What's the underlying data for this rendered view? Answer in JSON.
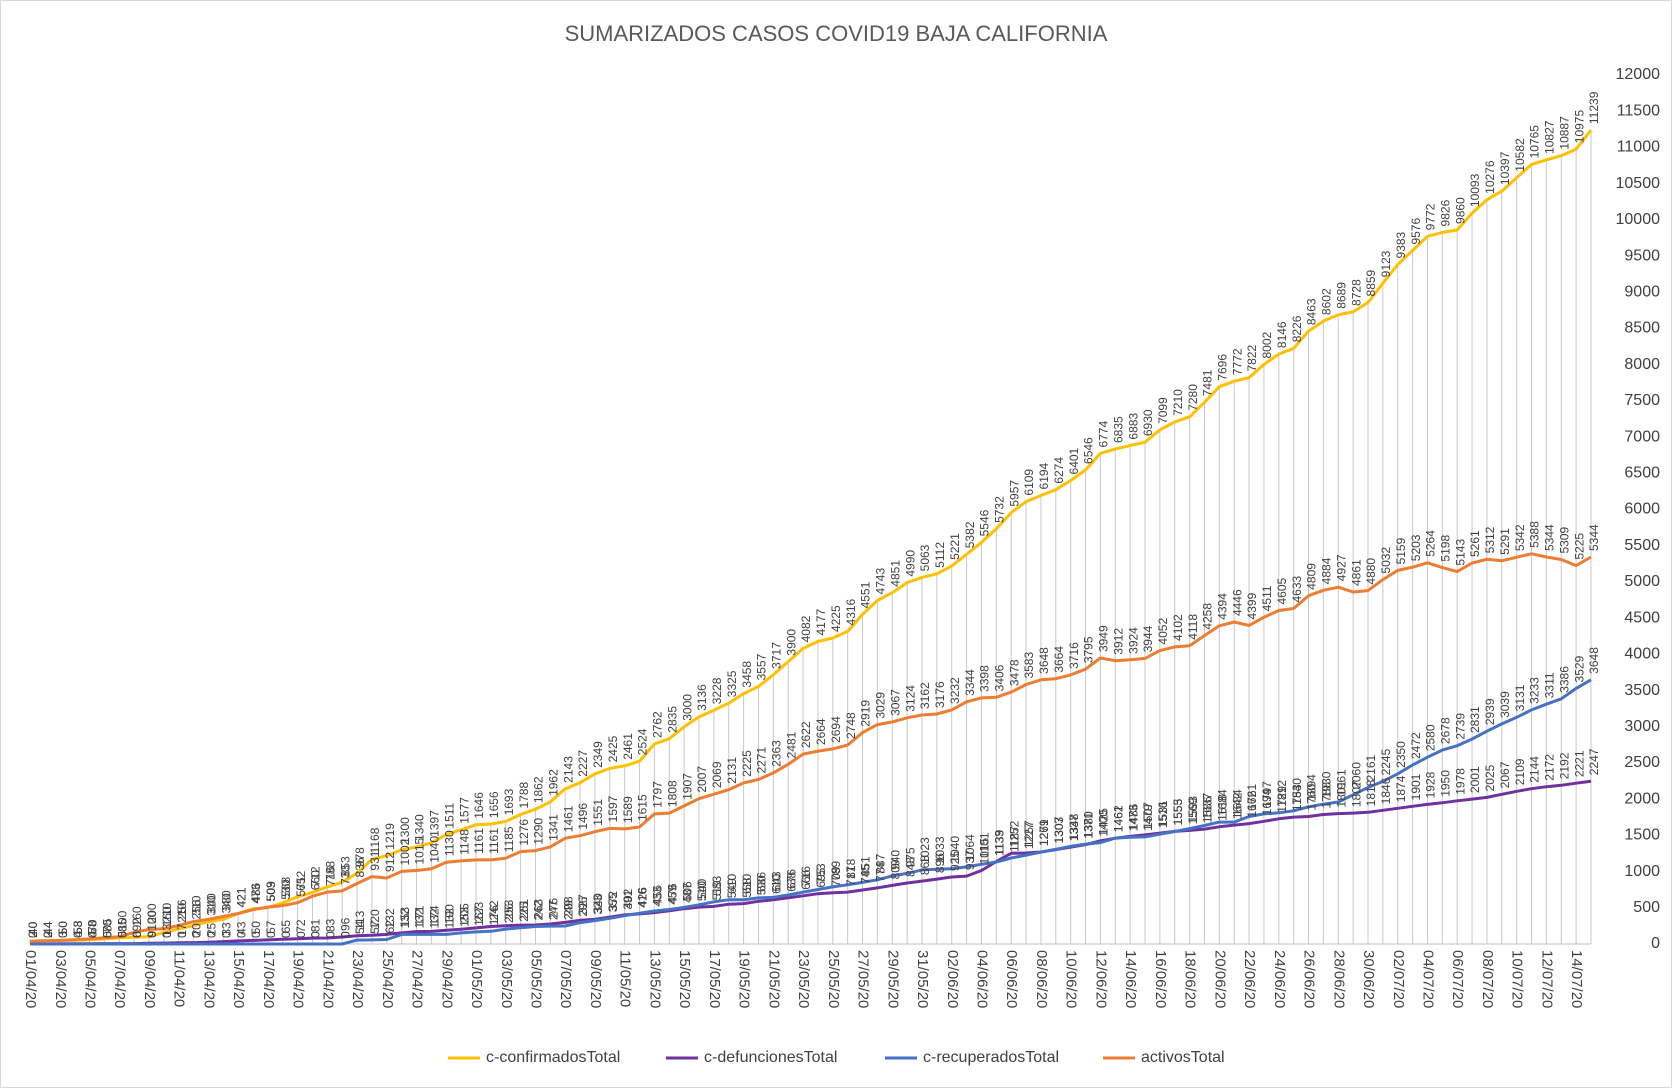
{
  "chart_data": {
    "type": "line",
    "title": "SUMARIZADOS  CASOS COVID19  BAJA  CALIFORNIA",
    "categories": [
      "01/04/20",
      null,
      "03/04/20",
      null,
      "05/04/20",
      null,
      "07/04/20",
      null,
      "09/04/20",
      null,
      "11/04/20",
      null,
      "13/04/20",
      null,
      "15/04/20",
      null,
      "17/04/20",
      null,
      "19/04/20",
      null,
      "21/04/20",
      null,
      "23/04/20",
      null,
      "25/04/20",
      null,
      "27/04/20",
      null,
      "29/04/20",
      null,
      "01/05/20",
      null,
      "03/05/20",
      null,
      "05/05/20",
      null,
      "07/05/20",
      null,
      "09/05/20",
      null,
      "11/05/20",
      null,
      "13/05/20",
      null,
      "15/05/20",
      null,
      "17/05/20",
      null,
      "19/05/20",
      null,
      "21/05/20",
      null,
      "23/05/20",
      null,
      "25/05/20",
      null,
      "27/05/20",
      null,
      "29/05/20",
      null,
      "31/05/20",
      null,
      "02/06/20",
      null,
      "04/06/20",
      null,
      "06/06/20",
      null,
      "08/06/20",
      null,
      "10/06/20",
      null,
      "12/06/20",
      null,
      "14/06/20",
      null,
      "16/06/20",
      null,
      "18/06/20",
      null,
      "20/06/20",
      null,
      "22/06/20",
      null,
      "24/06/20",
      null,
      "26/06/20",
      null,
      "28/06/20",
      null,
      "30/06/20",
      null,
      "02/07/20",
      null,
      "04/07/20",
      null,
      "06/07/20",
      null,
      "08/07/20",
      null,
      "10/07/20",
      null,
      "12/07/20",
      null,
      "14/07/20",
      null
    ],
    "series": [
      {
        "name": "c-confirmadosTotal",
        "color": "#ffc000",
        "values": [
          40,
          44,
          50,
          53,
          58,
          70,
          85,
          92,
          100,
          160,
          210,
          256,
          310,
          340,
          421,
          486,
          503,
          568,
          652,
          712,
          788,
          853,
          978,
          1168,
          1219,
          1300,
          1340,
          1397,
          1511,
          1577,
          1646,
          1656,
          1693,
          1788,
          1862,
          1962,
          2143,
          2227,
          2349,
          2425,
          2461,
          2524,
          2762,
          2835,
          3000,
          3136,
          3228,
          3325,
          3458,
          3557,
          3717,
          3900,
          4082,
          4177,
          4225,
          4316,
          4551,
          4743,
          4851,
          4990,
          5063,
          5112,
          5221,
          5382,
          5546,
          5732,
          5957,
          6109,
          6194,
          6274,
          6401,
          6546,
          6774,
          6835,
          6883,
          6930,
          7099,
          7210,
          7280,
          7481,
          7696,
          7772,
          7822,
          8002,
          8146,
          8226,
          8463,
          8602,
          8689,
          8728,
          8859,
          9123,
          9383,
          9576,
          9772,
          9826,
          9860,
          10093,
          10276,
          10397,
          10582,
          10765,
          10827,
          10887,
          10975,
          11239
        ]
      },
      {
        "name": "c-defuncionesTotal",
        "color": "#7030a0",
        "values": [
          2,
          2,
          3,
          4,
          4,
          5,
          5,
          6,
          9,
          13,
          17,
          20,
          25,
          33,
          43,
          50,
          57,
          65,
          72,
          81,
          83,
          96,
          113,
          120,
          132,
          153,
          171,
          174,
          190,
          205,
          223,
          242,
          253,
          261,
          263,
          276,
          298,
          327,
          340,
          372,
          402,
          416,
          433,
          459,
          487,
          510,
          519,
          549,
          558,
          590,
          610,
          638,
          666,
          695,
          709,
          717,
          745,
          774,
          809,
          843,
          868,
          896,
          925,
          937,
          1015,
          1139,
          1252,
          1257,
          1271,
          1303,
          1337,
          1371,
          1425,
          1461,
          1486,
          1507,
          1531,
          1555,
          1569,
          1586,
          1618,
          1642,
          1662,
          1694,
          1729,
          1753,
          1760,
          1788,
          1801,
          1807,
          1818,
          1846,
          1874,
          1901,
          1928,
          1950,
          1978,
          2001,
          2025,
          2067,
          2109,
          2144,
          2172,
          2192,
          2221,
          2247
        ]
      },
      {
        "name": "c-recuperadosTotal",
        "color": "#4472c4",
        "values": [
          0,
          0,
          0,
          0,
          0,
          0,
          0,
          0,
          0,
          0,
          0,
          0,
          0,
          0,
          0,
          0,
          0,
          0,
          0,
          0,
          0,
          0,
          54,
          57,
          62,
          132,
          132,
          132,
          132,
          153,
          167,
          176,
          206,
          225,
          242,
          247,
          249,
          296,
          323,
          355,
          391,
          426,
          456,
          476,
          506,
          540,
          583,
          610,
          610,
          636,
          643,
          676,
          716,
          753,
          789,
          818,
          851,
          887,
          940,
          975,
          1023,
          1033,
          1040,
          1064,
          1101,
          1133,
          1187,
          1227,
          1269,
          1307,
          1348,
          1380,
          1400,
          1462,
          1473,
          1479,
          1516,
          1553,
          1593,
          1637,
          1684,
          1684,
          1761,
          1797,
          1812,
          1840,
          1894,
          1930,
          1961,
          2060,
          2161,
          2245,
          2350,
          2472,
          2580,
          2678,
          2739,
          2831,
          2939,
          3039,
          3131,
          3233,
          3311,
          3386,
          3529,
          3648
        ]
      },
      {
        "name": "activosTotal",
        "color": "#ed7d31",
        "values": [
          40,
          44,
          50,
          58,
          70,
          85,
          100,
          160,
          200,
          210,
          256,
          310,
          340,
          380,
          421,
          473,
          509,
          530,
          571,
          660,
          716,
          733,
          836,
          931,
          912,
          1002,
          1015,
          1040,
          1130,
          1148,
          1161,
          1161,
          1185,
          1276,
          1290,
          1341,
          1461,
          1496,
          1551,
          1597,
          1589,
          1615,
          1797,
          1808,
          1907,
          2007,
          2069,
          2131,
          2225,
          2271,
          2363,
          2481,
          2622,
          2664,
          2694,
          2748,
          2919,
          3029,
          3067,
          3124,
          3162,
          3176,
          3232,
          3344,
          3398,
          3406,
          3478,
          3583,
          3648,
          3664,
          3716,
          3795,
          3949,
          3912,
          3924,
          3944,
          4052,
          4102,
          4118,
          4258,
          4394,
          4446,
          4399,
          4511,
          4605,
          4633,
          4809,
          4884,
          4927,
          4861,
          4880,
          5032,
          5159,
          5203,
          5264,
          5198,
          5143,
          5261,
          5312,
          5291,
          5342,
          5388,
          5344,
          5309,
          5225,
          5344
        ]
      }
    ],
    "ylim": [
      0,
      12000
    ],
    "yticks": [
      0,
      500,
      1000,
      1500,
      2000,
      2500,
      3000,
      3500,
      4000,
      4500,
      5000,
      5500,
      6000,
      6500,
      7000,
      7500,
      8000,
      8500,
      9000,
      9500,
      10000,
      10500,
      11000,
      11500,
      12000
    ],
    "grid": false,
    "legend": "bottom",
    "drop_lines": true,
    "data_labels": true
  }
}
